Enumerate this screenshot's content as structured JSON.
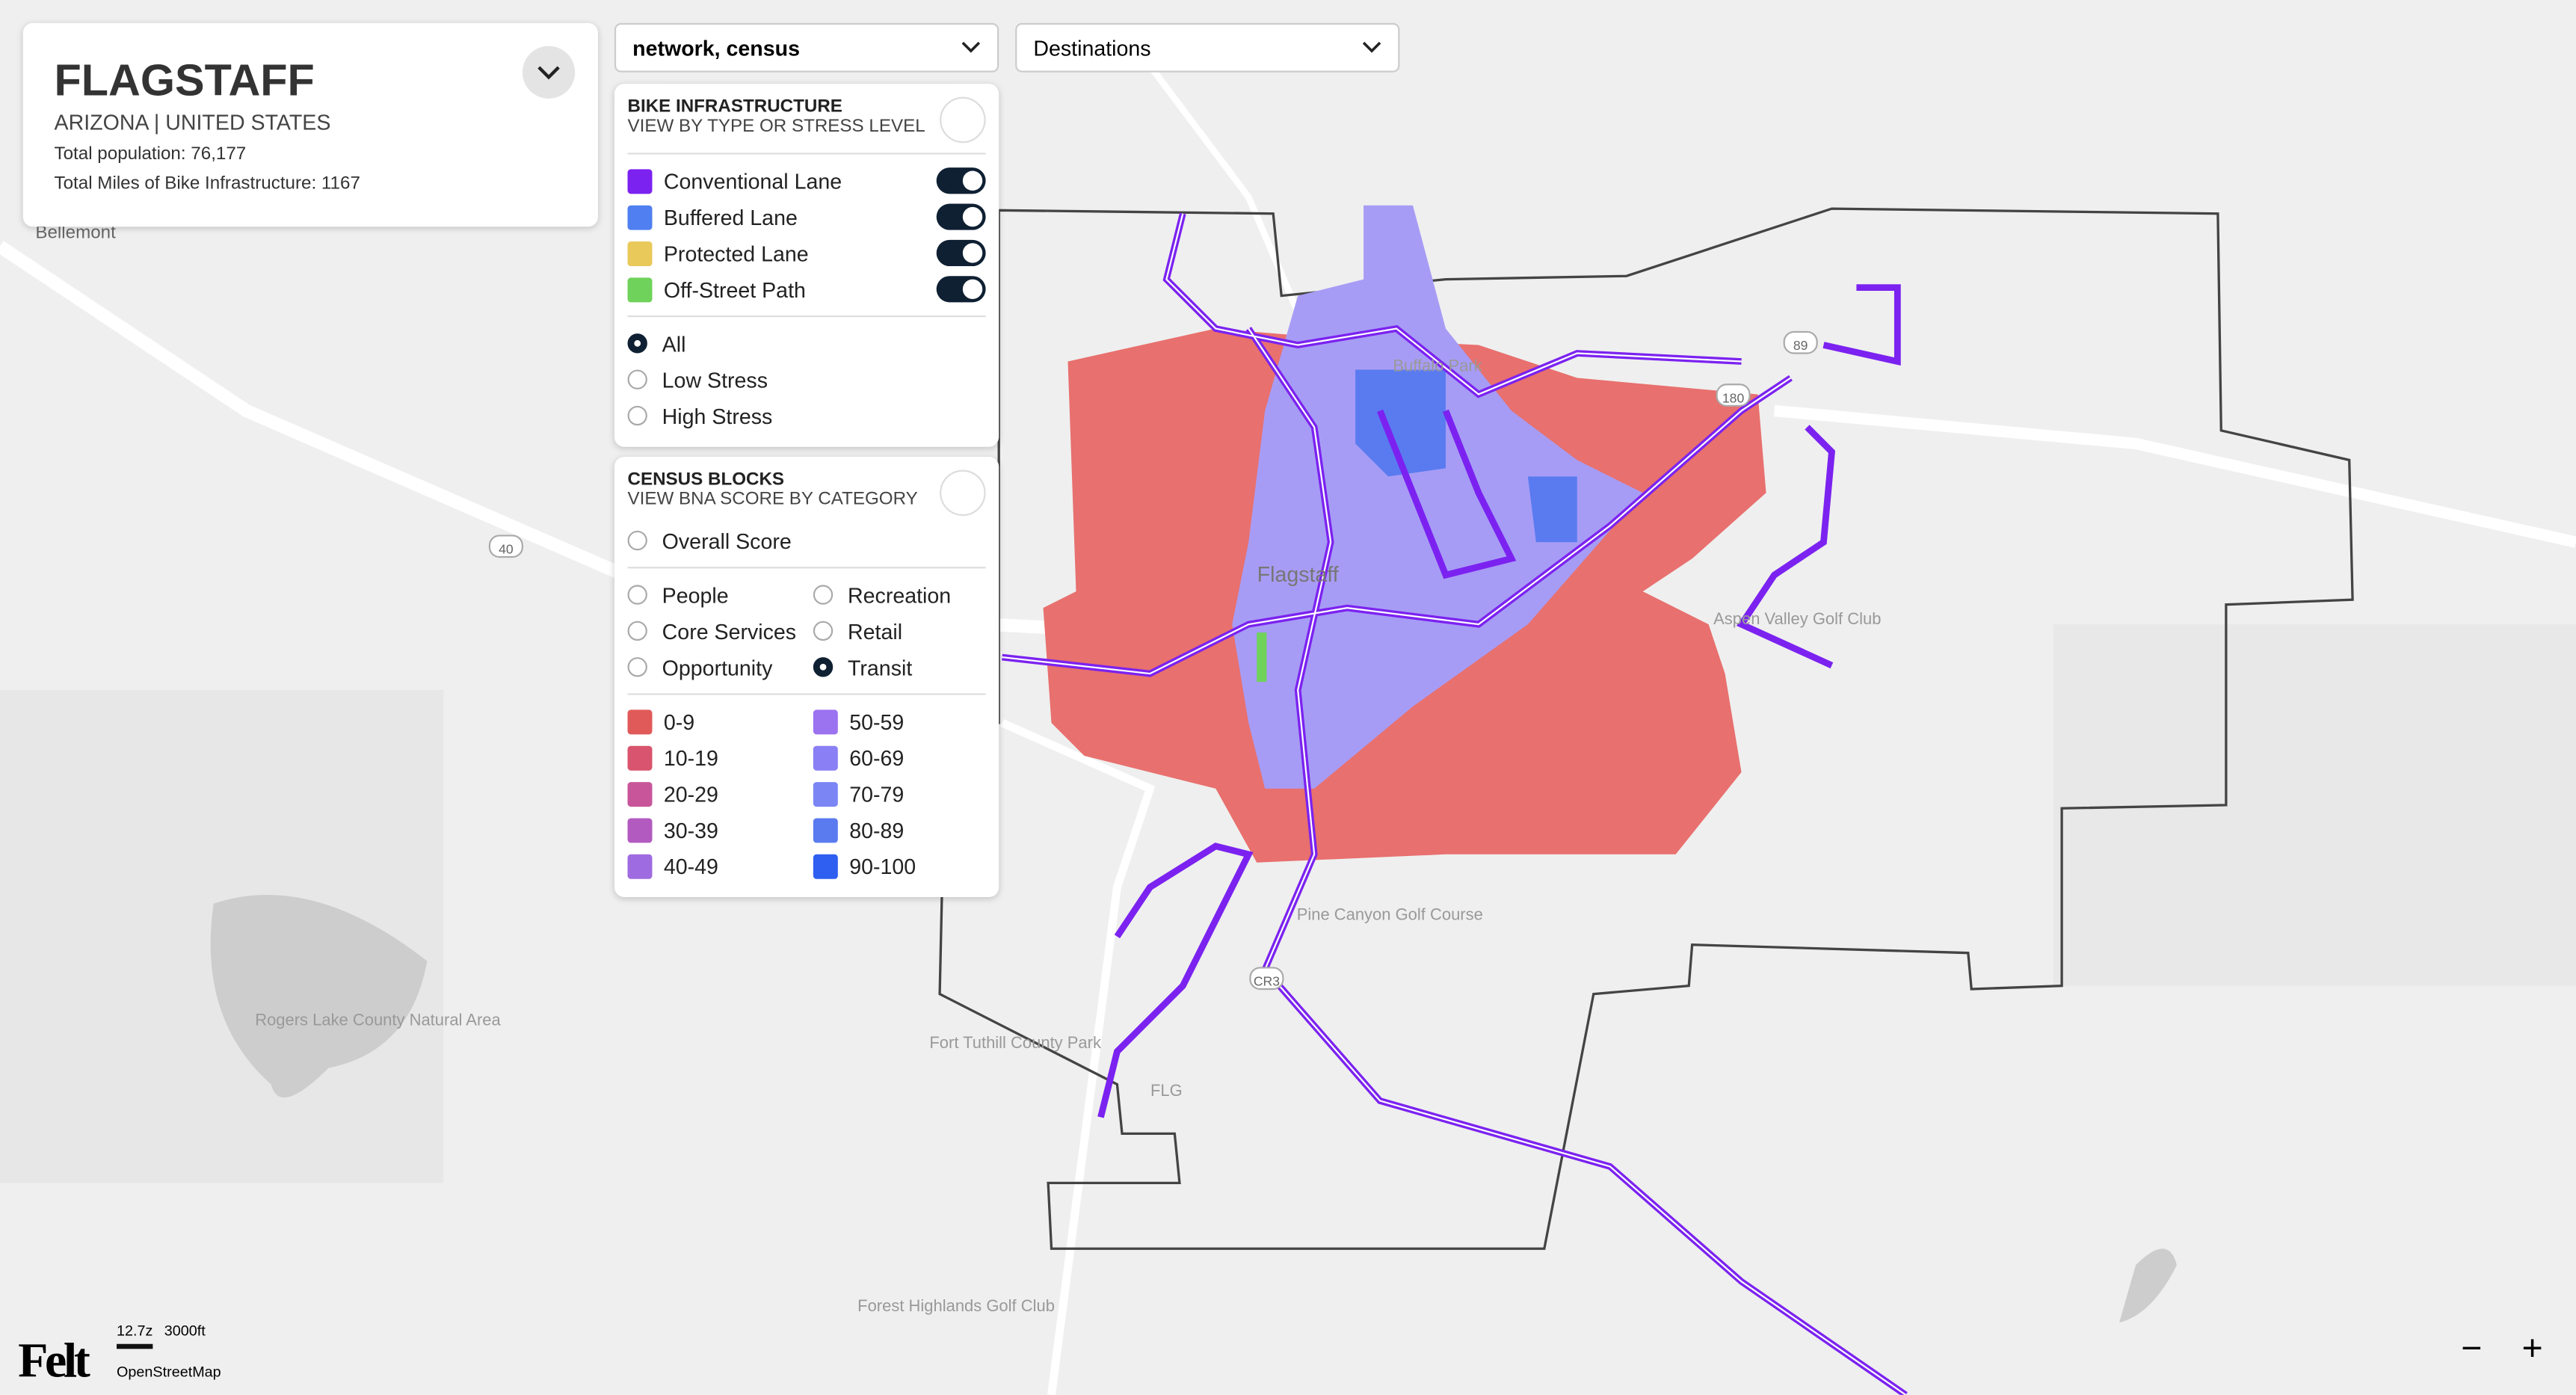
{
  "info": {
    "city": "FLAGSTAFF",
    "region": "ARIZONA | UNITED STATES",
    "population": "Total population: 76,177",
    "miles": "Total Miles of Bike Infrastructure: 1167"
  },
  "dropdowns": [
    "network, census",
    "Destinations"
  ],
  "bike_panel": {
    "title": "BIKE INFRASTRUCTURE",
    "subtitle": "VIEW BY TYPE OR STRESS LEVEL",
    "layers": [
      {
        "label": "Conventional Lane",
        "color": "#7b22f0",
        "on": true
      },
      {
        "label": "Buffered Lane",
        "color": "#4f7ff0",
        "on": true
      },
      {
        "label": "Protected Lane",
        "color": "#e8c95a",
        "on": true
      },
      {
        "label": "Off-Street Path",
        "color": "#6fd25a",
        "on": true
      }
    ],
    "stress": [
      {
        "label": "All",
        "selected": true
      },
      {
        "label": "Low Stress",
        "selected": false
      },
      {
        "label": "High Stress",
        "selected": false
      }
    ]
  },
  "census_panel": {
    "title": "CENSUS BLOCKS",
    "subtitle": "VIEW BNA SCORE BY CATEGORY",
    "overall": {
      "label": "Overall Score",
      "selected": false
    },
    "categories": [
      {
        "label": "People",
        "selected": false
      },
      {
        "label": "Recreation",
        "selected": false
      },
      {
        "label": "Core Services",
        "selected": false
      },
      {
        "label": "Retail",
        "selected": false
      },
      {
        "label": "Opportunity",
        "selected": false
      },
      {
        "label": "Transit",
        "selected": true
      }
    ],
    "legend": [
      {
        "label": "0-9",
        "color": "#e05a5a"
      },
      {
        "label": "50-59",
        "color": "#9b72f0"
      },
      {
        "label": "10-19",
        "color": "#d9546e"
      },
      {
        "label": "60-69",
        "color": "#8a7ff4"
      },
      {
        "label": "20-29",
        "color": "#c8559a"
      },
      {
        "label": "70-79",
        "color": "#7b86f4"
      },
      {
        "label": "30-39",
        "color": "#b25ac0"
      },
      {
        "label": "80-89",
        "color": "#5a7bf0"
      },
      {
        "label": "40-49",
        "color": "#9f6be0"
      },
      {
        "label": "90-100",
        "color": "#2f5ff0"
      }
    ]
  },
  "map_labels": [
    "Bellemont",
    "Flagstaff",
    "Buffalo Park",
    "Aspen Valley Golf Club",
    "Pine Canyon Golf Course",
    "Rogers Lake County Natural Area",
    "Fort Tuthill County Park",
    "FLG",
    "Forest Highlands Golf Club",
    "40",
    "180",
    "89",
    "CR3"
  ],
  "footer": {
    "logo": "Felt",
    "zoom": "12.7z",
    "scale": "3000ft",
    "attribution": "OpenStreetMap"
  },
  "controls": [
    "−",
    "+"
  ]
}
